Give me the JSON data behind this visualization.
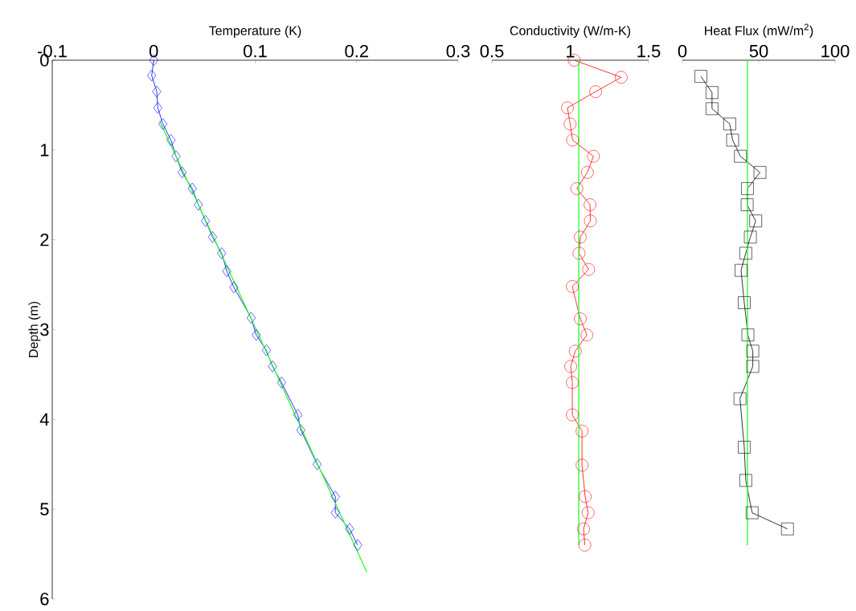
{
  "chart_data": [
    {
      "type": "line",
      "xlabel": "Temperature (K)",
      "ylabel": "Depth (m)",
      "xlim": [
        -0.1,
        0.3
      ],
      "xticks": [
        -0.1,
        0,
        0.1,
        0.2,
        0.3
      ],
      "ylim": [
        6,
        0
      ],
      "yticks": [
        0,
        1,
        2,
        3,
        4,
        5,
        6
      ],
      "series": [
        {
          "color": "#0000ff",
          "marker": "diamond",
          "x": [
            0.0,
            -0.002,
            0.003,
            0.004,
            0.009,
            0.017,
            0.022,
            0.028,
            0.038,
            0.044,
            0.051,
            0.058,
            0.067,
            0.072,
            0.079,
            0.096,
            0.101,
            0.111,
            0.117,
            0.126,
            0.142,
            0.145,
            0.161,
            0.179,
            0.179,
            0.193,
            0.201
          ],
          "values": [
            0,
            0.17,
            0.35,
            0.53,
            0.71,
            0.89,
            1.07,
            1.25,
            1.43,
            1.61,
            1.79,
            1.97,
            2.15,
            2.35,
            2.53,
            2.87,
            3.06,
            3.23,
            3.41,
            3.59,
            3.95,
            4.12,
            4.5,
            4.86,
            5.04,
            5.22,
            5.4
          ]
        },
        {
          "color": "#33ff33",
          "marker": "none",
          "x": [
            0.006,
            0.101,
            0.21
          ],
          "values": [
            0.68,
            3.0,
            5.7
          ]
        }
      ]
    },
    {
      "type": "line",
      "xlabel": "Conductivity (W/m-K)",
      "xlim": [
        0.5,
        1.5
      ],
      "xticks": [
        0.5,
        1,
        1.5
      ],
      "ylim": [
        6,
        0
      ],
      "tick_labels": "x",
      "series": [
        {
          "color": "#ff0000",
          "marker": "circle",
          "x": [
            1.025,
            1.325,
            1.162,
            0.982,
            0.999,
            1.015,
            1.148,
            1.109,
            1.042,
            1.126,
            1.128,
            1.064,
            1.056,
            1.117,
            1.013,
            1.064,
            1.106,
            1.032,
            1.003,
            1.013,
            1.013,
            1.075,
            1.075,
            1.095,
            1.114,
            1.085,
            1.093
          ],
          "values": [
            0,
            0.19,
            0.35,
            0.53,
            0.71,
            0.89,
            1.07,
            1.25,
            1.43,
            1.61,
            1.79,
            1.97,
            2.15,
            2.33,
            2.52,
            2.88,
            3.06,
            3.24,
            3.41,
            3.59,
            3.95,
            4.13,
            4.51,
            4.86,
            5.04,
            5.22,
            5.4
          ]
        },
        {
          "color": "#33ff33",
          "marker": "none",
          "x": [
            1.054,
            1.054
          ],
          "values": [
            0,
            5.4
          ]
        }
      ]
    },
    {
      "type": "line",
      "xlabel": "Heat Flux (mW/m$^{2}$)",
      "xlim": [
        0,
        100
      ],
      "xticks": [
        0,
        50,
        100
      ],
      "ylim": [
        6,
        0
      ],
      "tick_labels": "x",
      "series": [
        {
          "color": "#000000",
          "marker": "square",
          "x": [
            12.1,
            19.4,
            19.4,
            31.0,
            32.9,
            38.0,
            50.8,
            42.6,
            42.4,
            48.0,
            44.5,
            41.5,
            38.4,
            40.5,
            42.9,
            46.1,
            46.1,
            37.7,
            40.5,
            41.5,
            45.7,
            68.8
          ],
          "values": [
            0.18,
            0.36,
            0.54,
            0.71,
            0.89,
            1.07,
            1.25,
            1.43,
            1.61,
            1.79,
            1.97,
            2.15,
            2.34,
            2.7,
            3.06,
            3.24,
            3.41,
            3.77,
            4.31,
            4.68,
            5.04,
            5.22
          ]
        },
        {
          "color": "#33ff33",
          "marker": "none",
          "x": [
            42.6,
            42.6
          ],
          "values": [
            0,
            5.4
          ]
        }
      ]
    }
  ]
}
